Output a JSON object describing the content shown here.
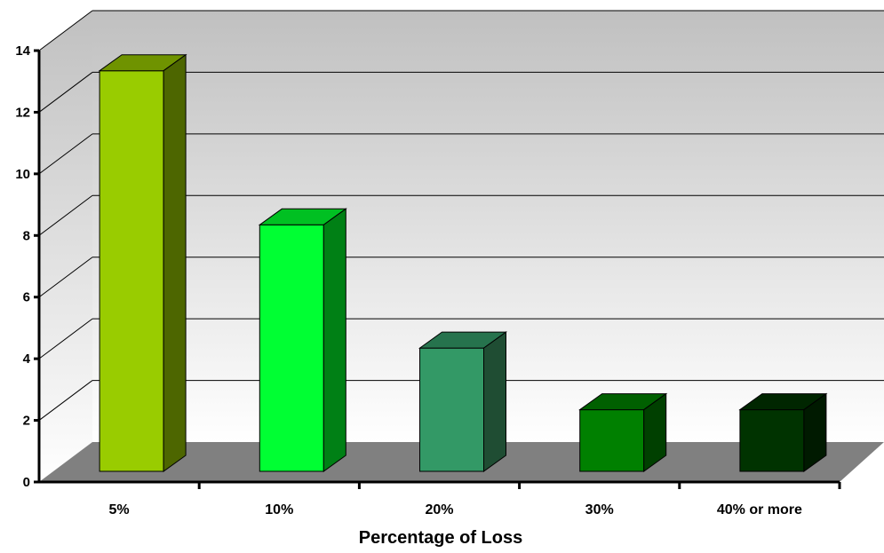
{
  "chart_data": {
    "type": "bar",
    "categories": [
      "5%",
      "10%",
      "20%",
      "30%",
      "40% or more"
    ],
    "values": [
      13,
      8,
      4,
      2,
      2
    ],
    "xlabel": "Percentage of Loss",
    "ylabel": "",
    "ylim": [
      0,
      14
    ],
    "yticks": [
      "0",
      "2",
      "4",
      "6",
      "8",
      "10",
      "12",
      "14"
    ],
    "grid": true,
    "legend": "none",
    "three_d": true,
    "bar_colors": [
      {
        "front": "#99cc00",
        "top": "#6f9300",
        "side": "#4d6600"
      },
      {
        "front": "#00ff33",
        "top": "#00c022",
        "side": "#008015"
      },
      {
        "front": "#339966",
        "top": "#26734d",
        "side": "#1f4d33"
      },
      {
        "front": "#008000",
        "top": "#006000",
        "side": "#004000"
      },
      {
        "front": "#003300",
        "top": "#002600",
        "side": "#001a00"
      }
    ],
    "wall_gradient": [
      "#c0c0c0",
      "#ffffff"
    ],
    "floor_color": "#808080"
  }
}
